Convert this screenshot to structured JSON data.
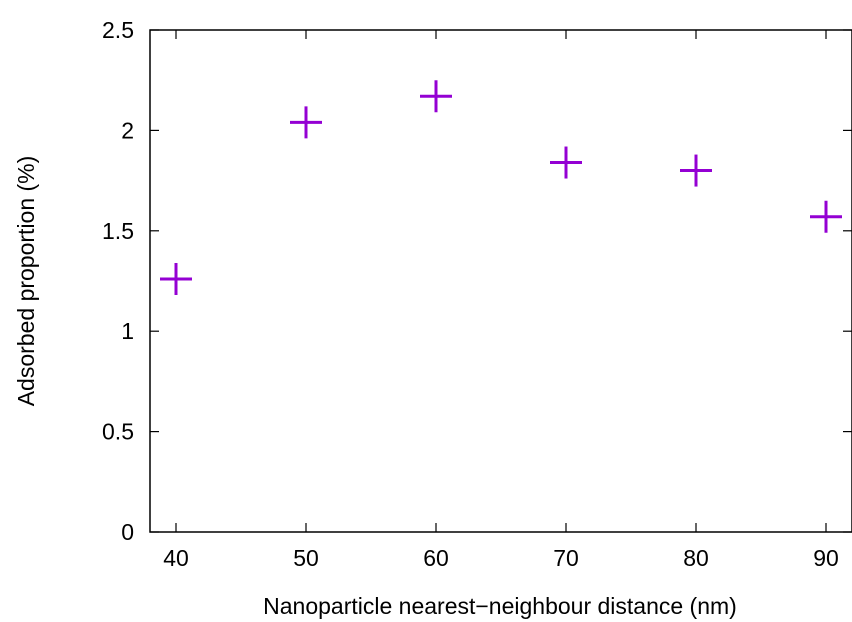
{
  "chart_data": {
    "type": "scatter",
    "xlabel": "Nanoparticle nearest−neighbour distance (nm)",
    "ylabel": "Adsorbed proportion (%)",
    "xlim": [
      38,
      92
    ],
    "ylim": [
      0,
      2.5
    ],
    "x_ticks": [
      40,
      50,
      60,
      70,
      80,
      90
    ],
    "x_tick_labels": [
      "40",
      "50",
      "60",
      "70",
      "80",
      "90"
    ],
    "y_ticks": [
      0,
      0.5,
      1,
      1.5,
      2,
      2.5
    ],
    "y_tick_labels": [
      "0",
      "0.5",
      "1",
      "1.5",
      "2",
      "2.5"
    ],
    "grid": false,
    "marker": "plus",
    "color": "#9400d3",
    "series": [
      {
        "x": [
          40,
          50,
          60,
          70,
          80,
          90
        ],
        "y": [
          1.26,
          2.04,
          2.17,
          1.84,
          1.8,
          1.57
        ]
      }
    ]
  }
}
